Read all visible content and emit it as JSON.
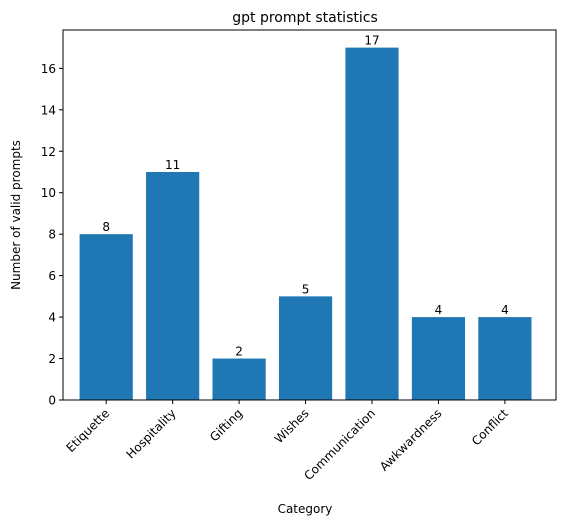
{
  "chart_data": {
    "type": "bar",
    "title": "gpt prompt statistics",
    "xlabel": "Category",
    "ylabel": "Number of valid prompts",
    "categories": [
      "Etiquette",
      "Hospitality",
      "Gifting",
      "Wishes",
      "Communication",
      "Awkwardness",
      "Conflict"
    ],
    "values": [
      8,
      11,
      2,
      5,
      17,
      4,
      4
    ],
    "data_labels": [
      "8",
      "11",
      "2",
      "5",
      "17",
      "4",
      "4"
    ],
    "ylim": [
      0,
      17.85
    ],
    "yticks": [
      0,
      2,
      4,
      6,
      8,
      10,
      12,
      14,
      16
    ],
    "ytick_labels": [
      "0",
      "2",
      "4",
      "6",
      "8",
      "10",
      "12",
      "14",
      "16"
    ],
    "grid": false,
    "legend": "none",
    "bar_color": "#1f77b4",
    "x_tick_rotation": "45"
  }
}
